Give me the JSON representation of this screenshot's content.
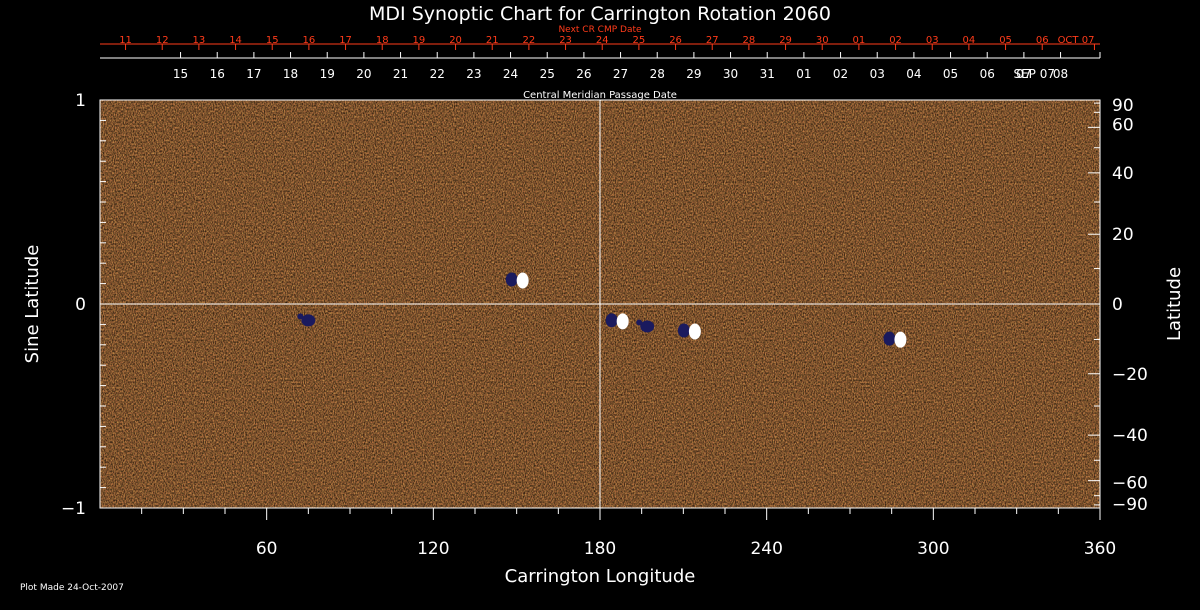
{
  "chart_data": {
    "type": "heatmap",
    "title": "MDI Synoptic Chart for Carrington Rotation 2060",
    "xlabel": "Carrington Longitude",
    "ylabel_left": "Sine Latitude",
    "ylabel_right": "Latitude",
    "xlim": [
      0,
      360
    ],
    "ylim": [
      -1,
      1
    ],
    "x_ticks": [
      60,
      120,
      180,
      240,
      300,
      360
    ],
    "y_ticks_left": [
      {
        "value": 1,
        "label": "1"
      },
      {
        "value": 0,
        "label": "0"
      },
      {
        "value": -1,
        "label": "−1"
      }
    ],
    "y_ticks_right": [
      {
        "lat": 90,
        "label": "90"
      },
      {
        "lat": 60,
        "label": "60"
      },
      {
        "lat": 40,
        "label": "40"
      },
      {
        "lat": 20,
        "label": "20"
      },
      {
        "lat": 0,
        "label": "0"
      },
      {
        "lat": -20,
        "label": "−20"
      },
      {
        "lat": -40,
        "label": "−40"
      },
      {
        "lat": -60,
        "label": "−60"
      },
      {
        "lat": -90,
        "label": "−90"
      }
    ],
    "cmp_axis_label": "Central Meridian Passage Date",
    "cmp_dates": [
      {
        "label": "SEP 07",
        "longitude": 360
      },
      {
        "label": "08",
        "longitude": 345.8
      },
      {
        "label": "07",
        "longitude": 332.6
      },
      {
        "label": "06",
        "longitude": 319.4
      },
      {
        "label": "05",
        "longitude": 306.2
      },
      {
        "label": "04",
        "longitude": 293.0
      },
      {
        "label": "03",
        "longitude": 279.8
      },
      {
        "label": "02",
        "longitude": 266.6
      },
      {
        "label": "01",
        "longitude": 253.4
      },
      {
        "label": "31",
        "longitude": 240.2
      },
      {
        "label": "30",
        "longitude": 227.0
      },
      {
        "label": "29",
        "longitude": 213.8
      },
      {
        "label": "28",
        "longitude": 200.6
      },
      {
        "label": "27",
        "longitude": 187.4
      },
      {
        "label": "26",
        "longitude": 174.2
      },
      {
        "label": "25",
        "longitude": 161.0
      },
      {
        "label": "24",
        "longitude": 147.8
      },
      {
        "label": "23",
        "longitude": 134.6
      },
      {
        "label": "22",
        "longitude": 121.4
      },
      {
        "label": "21",
        "longitude": 108.2
      },
      {
        "label": "20",
        "longitude": 95.0
      },
      {
        "label": "19",
        "longitude": 81.8
      },
      {
        "label": "18",
        "longitude": 68.6
      },
      {
        "label": "17",
        "longitude": 55.4
      },
      {
        "label": "16",
        "longitude": 42.2
      },
      {
        "label": "15",
        "longitude": 29.0
      }
    ],
    "next_cr_axis_label": "Next CR CMP Date",
    "next_cr_dates": [
      {
        "label": "OCT 07",
        "longitude": 358
      },
      {
        "label": "06",
        "longitude": 339.2
      },
      {
        "label": "05",
        "longitude": 326.0
      },
      {
        "label": "04",
        "longitude": 312.8
      },
      {
        "label": "03",
        "longitude": 299.6
      },
      {
        "label": "02",
        "longitude": 286.4
      },
      {
        "label": "01",
        "longitude": 273.2
      },
      {
        "label": "30",
        "longitude": 260.0
      },
      {
        "label": "29",
        "longitude": 246.8
      },
      {
        "label": "28",
        "longitude": 233.6
      },
      {
        "label": "27",
        "longitude": 220.4
      },
      {
        "label": "26",
        "longitude": 207.2
      },
      {
        "label": "25",
        "longitude": 194.0
      },
      {
        "label": "24",
        "longitude": 180.8
      },
      {
        "label": "23",
        "longitude": 167.6
      },
      {
        "label": "22",
        "longitude": 154.4
      },
      {
        "label": "21",
        "longitude": 141.2
      },
      {
        "label": "20",
        "longitude": 128.0
      },
      {
        "label": "19",
        "longitude": 114.8
      },
      {
        "label": "18",
        "longitude": 101.6
      },
      {
        "label": "17",
        "longitude": 88.4
      },
      {
        "label": "16",
        "longitude": 75.2
      },
      {
        "label": "15",
        "longitude": 62.0
      },
      {
        "label": "14",
        "longitude": 48.8
      },
      {
        "label": "13",
        "longitude": 35.6
      },
      {
        "label": "12",
        "longitude": 22.4
      },
      {
        "label": "11",
        "longitude": 9.2
      }
    ],
    "active_regions": [
      {
        "longitude": 150,
        "sin_lat": 0.12,
        "polarity": "mixed"
      },
      {
        "longitude": 75,
        "sin_lat": -0.08,
        "polarity": "negative"
      },
      {
        "longitude": 186,
        "sin_lat": -0.08,
        "polarity": "mixed"
      },
      {
        "longitude": 197,
        "sin_lat": -0.11,
        "polarity": "negative"
      },
      {
        "longitude": 212,
        "sin_lat": -0.13,
        "polarity": "mixed"
      },
      {
        "longitude": 286,
        "sin_lat": -0.17,
        "polarity": "mixed"
      }
    ],
    "colors": {
      "background": "#e8531c",
      "positive": "#ffffff",
      "negative": "#1a1a5e",
      "grid": "#ffffff",
      "next_cr_dates": "#ff3b1a"
    },
    "grid": true
  },
  "footer": {
    "plot_made": "Plot Made 24-Oct-2007"
  }
}
